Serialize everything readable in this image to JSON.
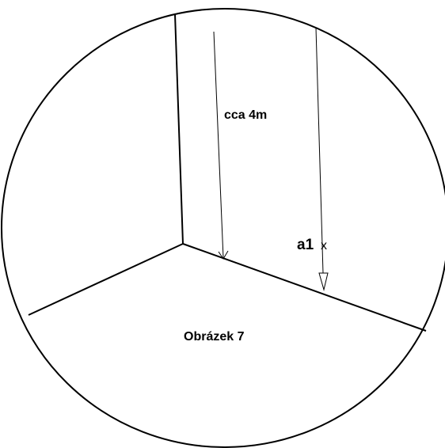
{
  "labels": {
    "height": "cca 4m",
    "point": "a1",
    "point_mark": "x",
    "caption": "Obrázek 7"
  }
}
